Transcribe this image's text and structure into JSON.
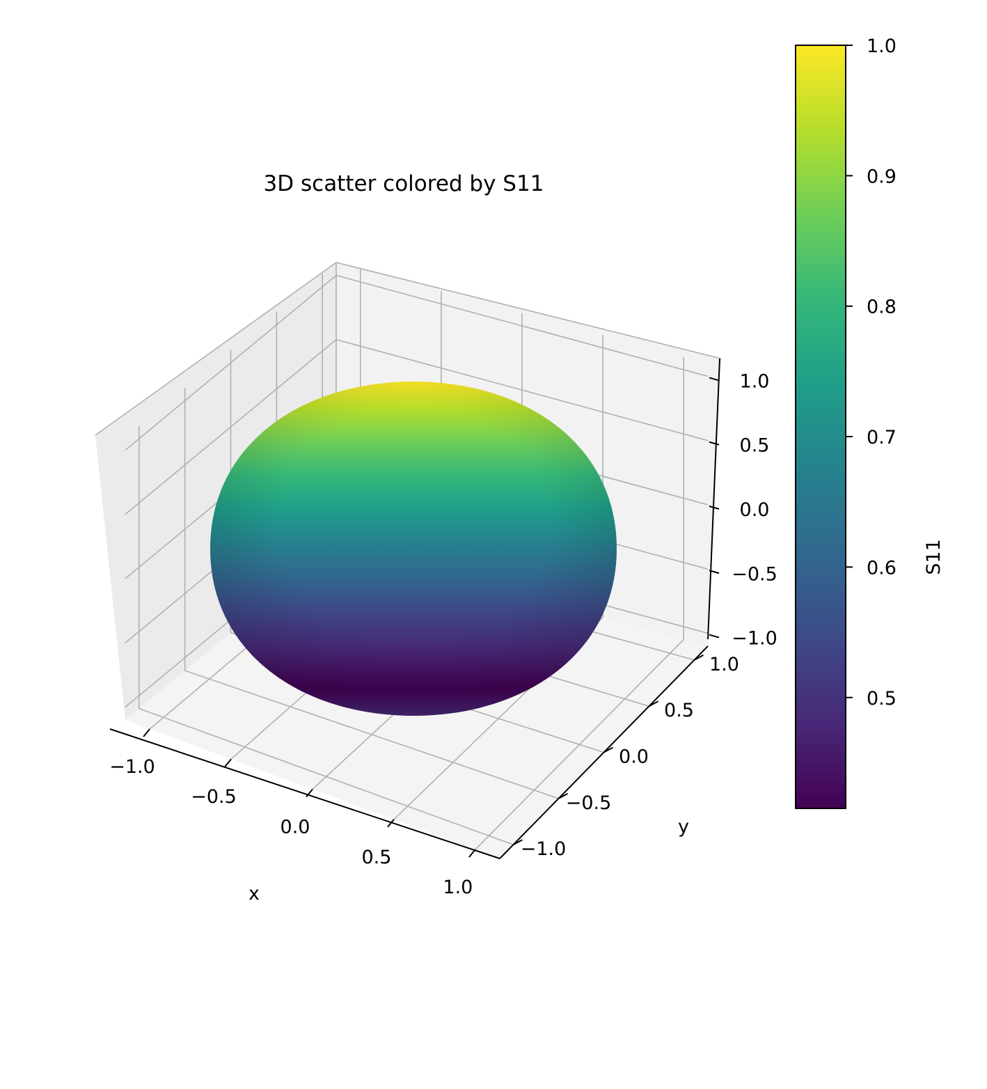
{
  "chart_data": {
    "type": "scatter",
    "projection": "3d",
    "title": "3D scatter colored by S11",
    "surface": "ellipsoid",
    "xlabel": "x",
    "ylabel": "y",
    "zlabel": "",
    "xlim": [
      -1.15,
      1.15
    ],
    "ylim": [
      -1.15,
      1.15
    ],
    "zlim": [
      -1.1,
      1.1
    ],
    "xticks": [
      -1.0,
      -0.5,
      0.0,
      0.5,
      1.0
    ],
    "yticks": [
      -1.0,
      -0.5,
      0.0,
      0.5,
      1.0
    ],
    "zticks": [
      -1.0,
      -0.5,
      0.0,
      0.5,
      1.0
    ],
    "xtick_labels": [
      "−1.0",
      "−0.5",
      "0.0",
      "0.5",
      "1.0"
    ],
    "ytick_labels": [
      "−1.0",
      "−0.5",
      "0.0",
      "0.5",
      "1.0"
    ],
    "ztick_labels": [
      "−1.0",
      "−0.5",
      "0.0",
      "0.5",
      "1.0"
    ],
    "color_by": "S11",
    "colormap": "viridis",
    "colorbar": {
      "label": "S11",
      "range": [
        0.415,
        1.0
      ],
      "ticks": [
        0.5,
        0.6,
        0.7,
        0.8,
        0.9,
        1.0
      ],
      "tick_labels": [
        "0.5",
        "0.6",
        "0.7",
        "0.8",
        "0.9",
        "1.0"
      ]
    },
    "grid": true
  },
  "colors": {
    "pane_back": "#f2f2f2",
    "pane_left": "#ebebeb",
    "pane_floor": "#f4f4f4",
    "grid": "#b0b0b0",
    "viridis": [
      "#440154",
      "#482878",
      "#3e4a89",
      "#31688e",
      "#26828e",
      "#1f9e89",
      "#35b779",
      "#6ece58",
      "#b5de2b",
      "#fde725"
    ]
  }
}
